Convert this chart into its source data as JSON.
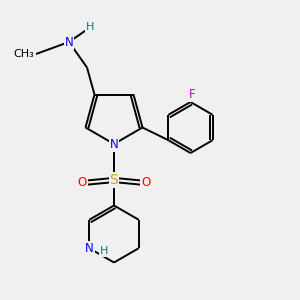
{
  "background_color": "#f0f0f0",
  "bond_color": "#000000",
  "atom_colors": {
    "N": "#0000ff",
    "H": "#008080",
    "O": "#ff0000",
    "S": "#ccaa00",
    "F": "#cc00cc",
    "C": "#000000"
  },
  "figsize": [
    3.0,
    3.0
  ],
  "dpi": 100,
  "bond_lw": 1.4,
  "double_sep": 0.07
}
